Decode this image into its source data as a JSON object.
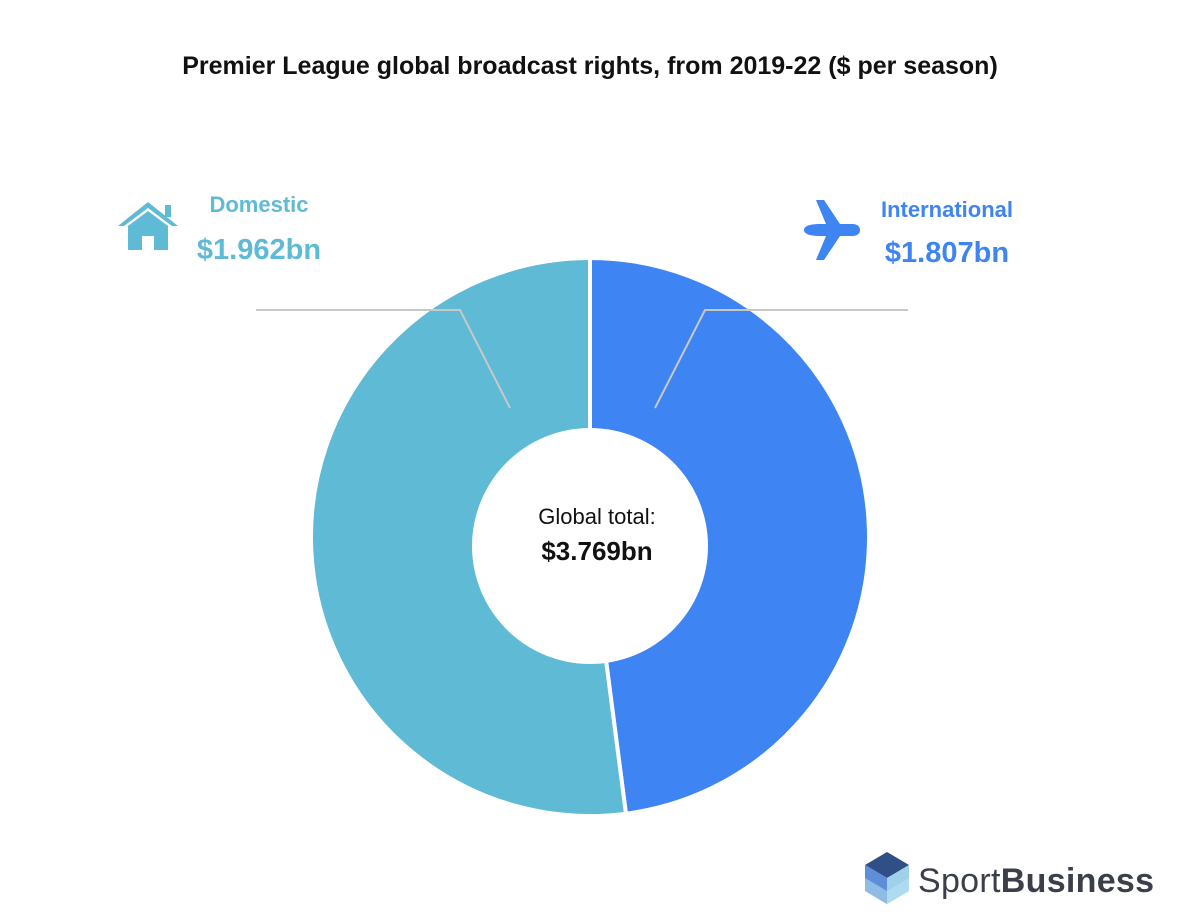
{
  "chart_data": {
    "type": "pie",
    "title": "Premier League global broadcast rights, from 2019-22 ($ per season)",
    "series": [
      {
        "name": "Domestic",
        "value": 1.962,
        "value_label": "$1.962bn",
        "color": "#5fbad6",
        "icon": "house-icon"
      },
      {
        "name": "International",
        "value": 1.807,
        "value_label": "$1.807bn",
        "color": "#3e84f2",
        "icon": "airplane-icon"
      }
    ],
    "center_label": "Global total:",
    "center_value": "$3.769bn",
    "donut": true
  },
  "brand": {
    "light": "Sport",
    "bold": "Business"
  },
  "colors": {
    "leader_line": "#c8c8c8",
    "title": "#111111",
    "logo_dark": "#2f4f86",
    "logo_mid": "#5c8fd6",
    "logo_light": "#9fd2ea"
  }
}
